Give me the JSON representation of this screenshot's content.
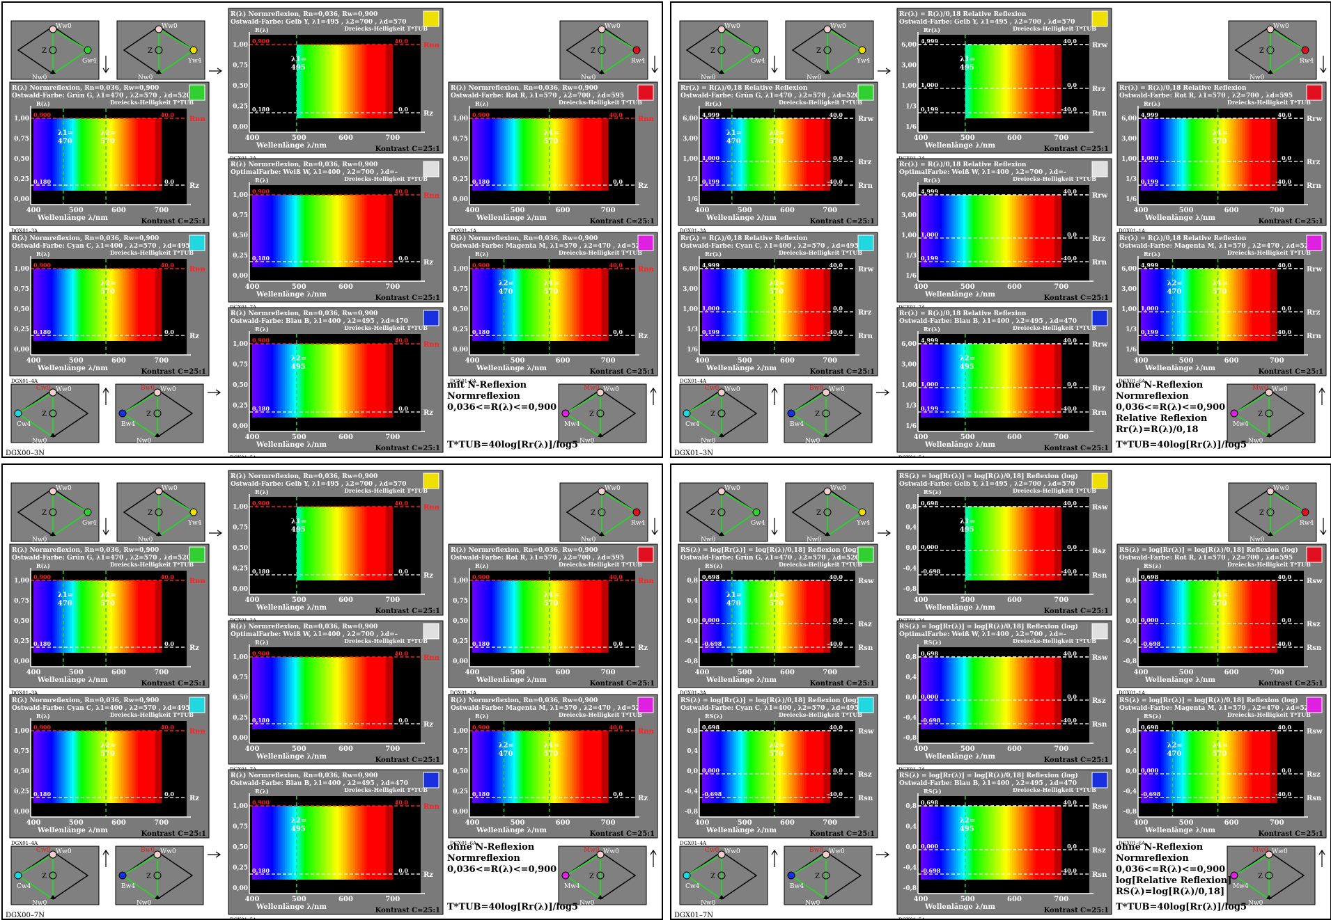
{
  "quadrants": [
    {
      "id": "q1",
      "mode": "norm",
      "label": "DGX00–3N",
      "notes": [
        "mit N-Reflexion",
        "Normreflexion",
        "0,036<=R(λ)<=0,900"
      ],
      "formula": "T*TUB=40log[Rr(λ)]/log5"
    },
    {
      "id": "q2",
      "mode": "rel",
      "label": "DGX01–3N",
      "notes": [
        "ohne N-Reflexion",
        "Normreflexion",
        "0,036<=R(λ)<=0,900",
        "Relative Reflexion",
        "Rr(λ)=R(λ)/0,18"
      ],
      "formula": "T*TUB=40log[Rr(λ)]/log5"
    },
    {
      "id": "q3",
      "mode": "norm",
      "label": "DGX00–7N",
      "notes": [
        "ohne N-Reflexion",
        "Normreflexion",
        "0,036<=R(λ)<=0,900"
      ],
      "formula": "T*TUB=40log[Rr(λ)]/log5"
    },
    {
      "id": "q4",
      "mode": "log",
      "label": "DGX01–7N",
      "notes": [
        "ohne N-Reflexion",
        "Normreflexion",
        "0,036<=R(λ)<=0,900",
        "log[Relative Reflexion]",
        "RS(λ)=log[R(λ)/0,18]"
      ],
      "formula": "T*TUB=40log[Rr(λ)]/log5"
    }
  ],
  "modes": {
    "norm": {
      "title_prefix": "R(λ) Normreflexion, Rn=0,036, Rw=0,900",
      "yticks": [
        "1,00",
        "0,75",
        "0,50",
        "0,25",
        "0,00"
      ],
      "yaxis": "R(λ)",
      "top_value": "0,900",
      "low_value": "0,180",
      "right_top": "Rnn",
      "right_low": "Rz",
      "scale_top": "40,0",
      "scale_low": "0,0"
    },
    "rel": {
      "title_prefix": "Rr(λ) = R(λ)/0,18 Relative Reflexion",
      "yticks": [
        "6,00",
        "3,00",
        "1,00",
        "1/3",
        "1/6"
      ],
      "yaxis": "Rr(λ)",
      "top_value": "4,999",
      "mid_value": "1,000",
      "low_value": "0,199",
      "right_top": "Rrw",
      "right_mid": "Rrz",
      "right_low": "Rrn",
      "scale_top": "40,0",
      "scale_mid": "0,0",
      "scale_low": "-40,0"
    },
    "log": {
      "title_prefix": "RS(λ) = log[Rr(λ)] = log[R(λ)/0,18] Reflexion (log)",
      "yticks": [
        "0,8",
        "0,4",
        "0,0",
        "-0,4",
        "-0,8"
      ],
      "yaxis": "RS(λ)",
      "top_value": "0,698",
      "mid_value": "0,000",
      "low_value": "-0,698",
      "right_top": "Rsw",
      "right_mid": "Rsz",
      "right_low": "Rsn",
      "scale_top": "40,0",
      "scale_mid": "0,0",
      "scale_low": "-40,0"
    }
  },
  "common": {
    "xlabel": "Wellenlänge λ/nm",
    "xticks": [
      "400",
      "500",
      "600",
      "700"
    ],
    "contrast": "Kontrast C=25:1",
    "helligkeit": "Dreiecks-Helligkeit  T*TUB",
    "triangle_labels": {
      "w": "Ww0",
      "n": "Nw0",
      "z": "Z"
    }
  },
  "panels": [
    {
      "key": "gelb",
      "name": "Ostwald-Farbe: Gelb Y, λ1=495 , λ2=700 , λd=570",
      "swatch": "#f0e000",
      "code": "DGX01–2A",
      "lambda_label": "λ1=\n495",
      "lambda_positions": [
        495
      ],
      "band": [
        495,
        700
      ]
    },
    {
      "key": "gruen",
      "name": "Ostwald-Farbe: Grün G, λ1=470 , λ2=570 , λd=520",
      "swatch": "#30d030",
      "code": "DGX01–3A",
      "lambda_label": "λ1=\n470|λ2=\n570",
      "lambda_positions": [
        470,
        570
      ],
      "band": [
        400,
        700
      ]
    },
    {
      "key": "rot",
      "name": "Ostwald-Farbe: Rot R, λ1=570 , λ2=700 , λd=595",
      "swatch": "#e01020",
      "code": "DGX01–1A",
      "lambda_label": "λ1=\n570",
      "lambda_positions": [
        570
      ],
      "band": [
        400,
        700
      ]
    },
    {
      "key": "weiss",
      "name": "OptimalFarbe: Weiß W, λ1=400 , λ2=700 , λd=–",
      "swatch": "#e0e0e0",
      "code": "DGX01–7A",
      "lambda_label": "",
      "lambda_positions": [],
      "band": [
        400,
        700
      ]
    },
    {
      "key": "cyan",
      "name": "Ostwald-Farbe: Cyan C, λ1=400 , λ2=570 , λd=495",
      "swatch": "#20d8e0",
      "code": "DGX01–4A",
      "lambda_label": "λ2=\n570",
      "lambda_positions": [
        570
      ],
      "band": [
        400,
        700
      ]
    },
    {
      "key": "magenta",
      "name": "Ostwald-Farbe: Magenta M, λ1=570 , λ2=470 , λd=520c",
      "swatch": "#e020e0",
      "code": "DGX01–6A",
      "lambda_label": "λ2=\n470|λ1=\n570",
      "lambda_positions": [
        470,
        570
      ],
      "band": [
        400,
        700
      ]
    },
    {
      "key": "blau",
      "name": "Ostwald-Farbe: Blau B, λ1=400 , λ2=495 , λd=470",
      "swatch": "#1830e0",
      "code": "DGX01–5A",
      "lambda_label": "λ2=\n495",
      "lambda_positions": [
        495
      ],
      "band": [
        400,
        700
      ]
    }
  ],
  "triangles": [
    {
      "key": "gruen-tri",
      "corner": "Gw4",
      "color": "#30d030",
      "pos": "tl"
    },
    {
      "key": "gelb-tri",
      "corner": "Yw4",
      "color": "#f0e000",
      "pos": "tm"
    },
    {
      "key": "rot-tri",
      "corner": "Rw4",
      "color": "#e01020",
      "pos": "tr"
    },
    {
      "key": "cyan-tri",
      "corner": "Cw4",
      "color": "#20d8e0",
      "pos": "bl",
      "top": "Cw0"
    },
    {
      "key": "blau-tri",
      "corner": "Bw4",
      "color": "#1830e0",
      "pos": "bm",
      "top": "Bw0"
    },
    {
      "key": "magenta-tri",
      "corner": "Mw4",
      "color": "#e020e0",
      "pos": "br",
      "top": "Mw0"
    }
  ],
  "colors": {
    "panel_bg": "#7a7a7a",
    "plot_bg": "#000000",
    "red_line": "#ff2020",
    "green_dash": "#30d030"
  }
}
